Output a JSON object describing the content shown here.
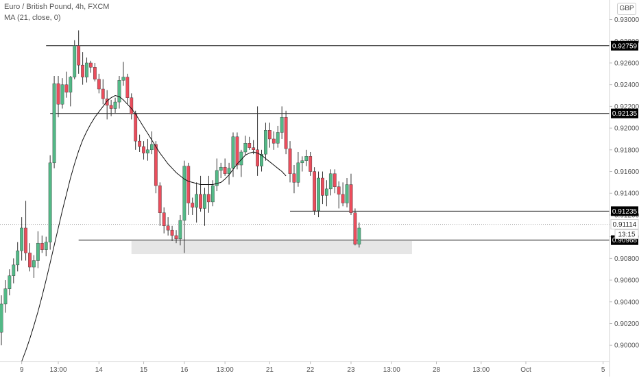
{
  "header": {
    "symbol_line": "Euro / British Pound, 4h, FXCM",
    "indicator_line": "MA (21, close, 0)",
    "currency_button": "GBP"
  },
  "colors": {
    "up": "#53b987",
    "down": "#eb4d5c",
    "ma": "#111111",
    "level": "#111111",
    "zone": "#e6e6e6",
    "axis_text": "#555555",
    "label_bg": "#000000",
    "label_text": "#ffffff"
  },
  "chart_data": {
    "type": "candlestick",
    "title": "Euro / British Pound, 4h, FXCM",
    "ylim": [
      0.8985,
      0.9318
    ],
    "y_ticks": [
      "0.90000",
      "0.90200",
      "0.90400",
      "0.90600",
      "0.90800",
      "0.91000",
      "0.91200",
      "0.91400",
      "0.91600",
      "0.91800",
      "0.92000",
      "0.92200",
      "0.92400",
      "0.92600",
      "0.92800",
      "0.93000"
    ],
    "x_ticks": [
      {
        "label": "9",
        "i": 5
      },
      {
        "label": "13:00",
        "i": 14
      },
      {
        "label": "14",
        "i": 24
      },
      {
        "label": "15",
        "i": 35
      },
      {
        "label": "16",
        "i": 45
      },
      {
        "label": "13:00",
        "i": 55
      },
      {
        "label": "21",
        "i": 66
      },
      {
        "label": "22",
        "i": 76
      },
      {
        "label": "23",
        "i": 86
      },
      {
        "label": "13:00",
        "i": 96
      },
      {
        "label": "28",
        "i": 107
      },
      {
        "label": "13:00",
        "i": 118
      },
      {
        "label": "Oct",
        "i": 129
      },
      {
        "label": "5",
        "i": 148
      }
    ],
    "series": [
      {
        "name": "EUR/GBP",
        "ohlc": [
          [
            0.9012,
            0.9046,
            0.9,
            0.9038
          ],
          [
            0.9038,
            0.906,
            0.903,
            0.9052
          ],
          [
            0.9052,
            0.907,
            0.9046,
            0.9064
          ],
          [
            0.9064,
            0.908,
            0.9057,
            0.9074
          ],
          [
            0.9074,
            0.9095,
            0.9068,
            0.9087
          ],
          [
            0.9087,
            0.9118,
            0.9078,
            0.9108
          ],
          [
            0.9108,
            0.9133,
            0.9078,
            0.9085
          ],
          [
            0.9085,
            0.9094,
            0.9068,
            0.9072
          ],
          [
            0.9072,
            0.9083,
            0.9062,
            0.9078
          ],
          [
            0.9078,
            0.9105,
            0.9071,
            0.9094
          ],
          [
            0.9094,
            0.9101,
            0.9085,
            0.9088
          ],
          [
            0.9088,
            0.91,
            0.9082,
            0.9095
          ],
          [
            0.9095,
            0.9175,
            0.9088,
            0.9168
          ],
          [
            0.9168,
            0.9248,
            0.9163,
            0.9241
          ],
          [
            0.9241,
            0.9248,
            0.921,
            0.9222
          ],
          [
            0.9222,
            0.9246,
            0.9218,
            0.924
          ],
          [
            0.924,
            0.9252,
            0.9228,
            0.9233
          ],
          [
            0.9233,
            0.9248,
            0.922,
            0.9247
          ],
          [
            0.9247,
            0.9281,
            0.9245,
            0.9276
          ],
          [
            0.9276,
            0.929,
            0.925,
            0.9258
          ],
          [
            0.9258,
            0.927,
            0.924,
            0.9247
          ],
          [
            0.9247,
            0.9265,
            0.9242,
            0.926
          ],
          [
            0.926,
            0.9262,
            0.9251,
            0.9256
          ],
          [
            0.9256,
            0.926,
            0.9243,
            0.9245
          ],
          [
            0.9245,
            0.925,
            0.9232,
            0.9236
          ],
          [
            0.9236,
            0.9245,
            0.9222,
            0.9227
          ],
          [
            0.9227,
            0.9235,
            0.9208,
            0.9221
          ],
          [
            0.9221,
            0.9226,
            0.9211,
            0.9218
          ],
          [
            0.9218,
            0.9228,
            0.9214,
            0.9224
          ],
          [
            0.9224,
            0.9248,
            0.9218,
            0.9244
          ],
          [
            0.9244,
            0.9261,
            0.9239,
            0.9247
          ],
          [
            0.9247,
            0.925,
            0.9222,
            0.9228
          ],
          [
            0.9228,
            0.9232,
            0.9208,
            0.9213
          ],
          [
            0.9213,
            0.9216,
            0.918,
            0.9188
          ],
          [
            0.9188,
            0.9194,
            0.9178,
            0.9183
          ],
          [
            0.9183,
            0.9188,
            0.9171,
            0.9177
          ],
          [
            0.9177,
            0.919,
            0.917,
            0.918
          ],
          [
            0.918,
            0.9197,
            0.9176,
            0.9185
          ],
          [
            0.9185,
            0.9188,
            0.914,
            0.9147
          ],
          [
            0.9147,
            0.915,
            0.911,
            0.9122
          ],
          [
            0.9122,
            0.9127,
            0.9103,
            0.911
          ],
          [
            0.911,
            0.9118,
            0.9101,
            0.9106
          ],
          [
            0.9106,
            0.911,
            0.9096,
            0.9101
          ],
          [
            0.9101,
            0.9106,
            0.9094,
            0.9098
          ],
          [
            0.9098,
            0.912,
            0.9092,
            0.9115
          ],
          [
            0.9115,
            0.917,
            0.9085,
            0.9165
          ],
          [
            0.9165,
            0.9168,
            0.912,
            0.9131
          ],
          [
            0.9131,
            0.9136,
            0.912,
            0.9127
          ],
          [
            0.9127,
            0.915,
            0.9113,
            0.9139
          ],
          [
            0.9139,
            0.9156,
            0.9123,
            0.9126
          ],
          [
            0.9126,
            0.9145,
            0.911,
            0.9139
          ],
          [
            0.9139,
            0.9156,
            0.9122,
            0.9132
          ],
          [
            0.9132,
            0.9152,
            0.9128,
            0.9147
          ],
          [
            0.9147,
            0.9172,
            0.9142,
            0.9161
          ],
          [
            0.9161,
            0.9168,
            0.9154,
            0.9164
          ],
          [
            0.9164,
            0.9172,
            0.9156,
            0.9158
          ],
          [
            0.9158,
            0.9168,
            0.9148,
            0.9163
          ],
          [
            0.9163,
            0.9196,
            0.9155,
            0.9192
          ],
          [
            0.9192,
            0.9196,
            0.9162,
            0.9166
          ],
          [
            0.9166,
            0.918,
            0.9155,
            0.9178
          ],
          [
            0.9178,
            0.9193,
            0.9175,
            0.9186
          ],
          [
            0.9186,
            0.9192,
            0.918,
            0.9182
          ],
          [
            0.9182,
            0.9189,
            0.9176,
            0.918
          ],
          [
            0.918,
            0.922,
            0.9156,
            0.9165
          ],
          [
            0.9165,
            0.918,
            0.916,
            0.9176
          ],
          [
            0.9176,
            0.9205,
            0.917,
            0.9198
          ],
          [
            0.9198,
            0.9205,
            0.9182,
            0.919
          ],
          [
            0.919,
            0.9197,
            0.918,
            0.9186
          ],
          [
            0.9186,
            0.9202,
            0.9182,
            0.9196
          ],
          [
            0.9196,
            0.922,
            0.919,
            0.921
          ],
          [
            0.921,
            0.9216,
            0.9176,
            0.9181
          ],
          [
            0.9181,
            0.9188,
            0.915,
            0.9158
          ],
          [
            0.9158,
            0.9166,
            0.914,
            0.915
          ],
          [
            0.915,
            0.9178,
            0.9146,
            0.9168
          ],
          [
            0.9168,
            0.9174,
            0.916,
            0.917
          ],
          [
            0.917,
            0.918,
            0.9165,
            0.9174
          ],
          [
            0.9174,
            0.9178,
            0.9156,
            0.916
          ],
          [
            0.916,
            0.9164,
            0.912,
            0.9124
          ],
          [
            0.9124,
            0.916,
            0.9118,
            0.9154
          ],
          [
            0.9154,
            0.916,
            0.913,
            0.9138
          ],
          [
            0.9138,
            0.9152,
            0.9128,
            0.9144
          ],
          [
            0.9144,
            0.9162,
            0.9138,
            0.9158
          ],
          [
            0.9158,
            0.9162,
            0.914,
            0.9146
          ],
          [
            0.9146,
            0.9151,
            0.9126,
            0.9139
          ],
          [
            0.9139,
            0.915,
            0.9128,
            0.9131
          ],
          [
            0.9131,
            0.9154,
            0.9127,
            0.9148
          ],
          [
            0.9148,
            0.9158,
            0.912,
            0.9122
          ],
          [
            0.9122,
            0.9126,
            0.9092,
            0.9093
          ],
          [
            0.9093,
            0.9113,
            0.909,
            0.9108
          ]
        ]
      },
      {
        "name": "MA (21, close, 0)",
        "start_i": 5,
        "values": [
          0.8985,
          0.8995,
          0.9006,
          0.9018,
          0.9031,
          0.9045,
          0.906,
          0.9076,
          0.9092,
          0.9108,
          0.9124,
          0.9139,
          0.9154,
          0.9167,
          0.9179,
          0.9189,
          0.9197,
          0.9204,
          0.921,
          0.9215,
          0.922,
          0.9225,
          0.9228,
          0.923,
          0.9229,
          0.9226,
          0.9222,
          0.9218,
          0.9213,
          0.9207,
          0.9201,
          0.9195,
          0.9189,
          0.9183,
          0.9177,
          0.9172,
          0.9167,
          0.9163,
          0.9159,
          0.9156,
          0.9153,
          0.9151,
          0.915,
          0.9149,
          0.9148,
          0.9148,
          0.9148,
          0.9148,
          0.9149,
          0.915,
          0.9153,
          0.9157,
          0.9162,
          0.9167,
          0.9171,
          0.9175,
          0.9177,
          0.9178,
          0.9177,
          0.9175,
          0.9172,
          0.9169,
          0.9166,
          0.9163,
          0.916,
          0.9156
        ]
      }
    ],
    "levels": [
      {
        "value": 0.92759,
        "label": "0.92759",
        "from_i": 11
      },
      {
        "value": 0.92135,
        "label": "0.92135",
        "from_i": 12
      },
      {
        "value": 0.91235,
        "label": "0.91235",
        "from_i": 71
      },
      {
        "value": 0.90968,
        "label": "0.90968",
        "from_i": 19
      }
    ],
    "zone": {
      "from_i": 32,
      "to_i": 101,
      "high": 0.9096,
      "low": 0.9084
    },
    "last_price": {
      "value": 0.91114,
      "label": "0.91114",
      "countdown": "13:15"
    }
  }
}
